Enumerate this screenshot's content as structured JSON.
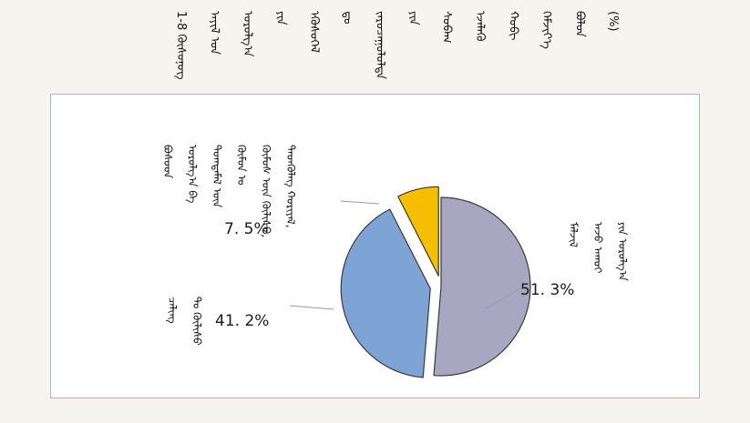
{
  "title": {
    "columns": [
      "1-8 ᠬᠦᠰᠦᠨᠦᠭ",
      "ᠠᠶᠢᠯ ᠤᠨ",
      "ᠣᠷᠣᠯᠭ᠎ᠠ",
      "ᠶᠢᠨ",
      "ᠡᠬᠦᠰᠦᠭᠡᠯ",
      "ᠳᠤ",
      "ᠵᠠᠷᠤᠴᠠᠭᠤᠯᠤᠯᠲᠠ",
      "ᠶᠢᠨ",
      "ᠰᠤᠪᠠᠭ",
      "ᠡᠵᠡᠯᠡᠬᠦ",
      "ᠬᠤᠪᠢ",
      "ᠬᠡᠮᠵᠢᠶ᠎ᠡ",
      "ᠪᠣᠯᠤᠨ",
      "(%)"
    ]
  },
  "chart_data": {
    "type": "pie",
    "title": "",
    "slices": [
      {
        "label_lines": [
          "ᠮᠠᠯᠵᠢᠯ",
          "ᠠᠵᠤ ᠠᠬᠤᠢ",
          "ᠶᠢᠨ ᠣᠷᠣᠯᠭ᠎ᠠ"
        ],
        "value": 51.3,
        "value_label": "51. 3%",
        "color": "#a8a6c0",
        "exploded": false
      },
      {
        "label_lines": [
          "ᠴᠠᠯᠢᠩ",
          "ᠲᠤ ᠬᠦᠯᠢᠰᠦ"
        ],
        "value": 41.2,
        "value_label": "41. 2%",
        "color": "#7ea4d6",
        "exploded": true
      },
      {
        "label_lines": [
          "ᠪᠤᠰᠤᠳ",
          "ᠣᠷᠣᠯᠭ᠎ᠠ ᠪᠠ",
          "ᠲᠣᠭᠲᠠᠮᠠᠯ ᠦᠨ",
          "ᠬᠦᠮᠦᠨ ᠤ",
          "ᠬᠦᠮᠦᠰ ᠦᠨ ᠬᠦᠯᠢᠰᠦ,",
          "ᠲᠡᠳᠬᠦᠯᠡᠭ ᠬᠤᠷᠢᠶᠠᠯ,"
        ],
        "value": 7.5,
        "value_label": "7. 5%",
        "color": "#f5bf00",
        "exploded": true
      }
    ]
  }
}
